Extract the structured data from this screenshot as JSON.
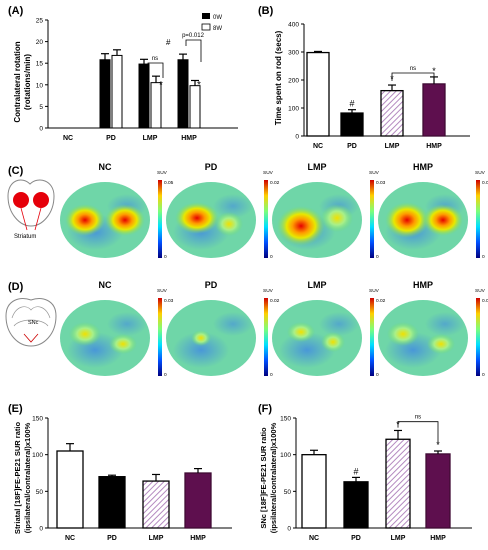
{
  "chart_data": [
    {
      "panel": "(A)",
      "type": "bar",
      "ylabel": "Contralateral rotation\n(rotations/min)",
      "ylim": [
        0,
        25
      ],
      "yticks": [
        0,
        5,
        10,
        15,
        20,
        25
      ],
      "categories": [
        "NC",
        "PD",
        "LMP",
        "HMP"
      ],
      "legend": "top-right",
      "series": [
        {
          "name": "0W",
          "color": "#000000",
          "values": [
            0,
            15.8,
            14.8,
            15.8
          ],
          "errors": [
            0,
            1.4,
            1.1,
            1.3
          ]
        },
        {
          "name": "8W",
          "color": "#ffffff",
          "values": [
            0,
            16.8,
            10.5,
            9.8
          ],
          "errors": [
            0,
            1.3,
            1.5,
            1.2
          ]
        }
      ],
      "annotations": {
        "pd_8w": "#",
        "lmp_8w": "*",
        "hmp_8w": "*",
        "lmp_bracket": "ns",
        "hmp_bracket": "p=0.012"
      }
    },
    {
      "panel": "(B)",
      "type": "bar",
      "ylabel": "Time spent on rod (secs)",
      "ylim": [
        0,
        400
      ],
      "yticks": [
        0,
        100,
        200,
        300,
        400
      ],
      "categories": [
        "NC",
        "PD",
        "LMP",
        "HMP"
      ],
      "values": [
        298,
        82,
        162,
        186
      ],
      "errors": [
        4,
        12,
        20,
        25
      ],
      "annotations": [
        "",
        "#",
        "*",
        "*"
      ],
      "bracket": "ns"
    },
    {
      "panel": "(E)",
      "type": "bar",
      "ylabel": "Striatal [18F]FE-PE21 SUR ratio\n(ipsilateral/contralateral)x100%",
      "ylim": [
        0,
        150
      ],
      "yticks": [
        0,
        50,
        100,
        150
      ],
      "categories": [
        "NC",
        "PD",
        "LMP",
        "HMP"
      ],
      "values": [
        105,
        70,
        64,
        75
      ],
      "errors": [
        10,
        2,
        9,
        6
      ],
      "annotations": [
        "",
        "",
        "",
        ""
      ]
    },
    {
      "panel": "(F)",
      "type": "bar",
      "ylabel": "SNc [18F]FE-PE21 SUR ratio\n(ipsilateral/contralateral)x100%",
      "ylim": [
        0,
        150
      ],
      "yticks": [
        0,
        50,
        100,
        150
      ],
      "categories": [
        "NC",
        "PD",
        "LMP",
        "HMP"
      ],
      "values": [
        100,
        63,
        121,
        101
      ],
      "errors": [
        6,
        6,
        12,
        4
      ],
      "annotations": [
        "",
        "#",
        "*",
        "*"
      ],
      "bracket": "ns"
    }
  ],
  "pet_panels": [
    {
      "panel": "(C)",
      "region_label": "Striatum",
      "groups": [
        {
          "label": "NC",
          "scale_unit": "SUV",
          "scale_max": "0.05",
          "scale_min": "0"
        },
        {
          "label": "PD",
          "scale_unit": "SUV",
          "scale_max": "0.02",
          "scale_min": "0"
        },
        {
          "label": "LMP",
          "scale_unit": "SUV",
          "scale_max": "0.03",
          "scale_min": "0"
        },
        {
          "label": "HMP",
          "scale_unit": "SUV",
          "scale_max": "0.05",
          "scale_min": "0"
        }
      ]
    },
    {
      "panel": "(D)",
      "region_label": "SNc",
      "groups": [
        {
          "label": "NC",
          "scale_unit": "SUV",
          "scale_max": "0.03",
          "scale_min": "0"
        },
        {
          "label": "PD",
          "scale_unit": "SUV",
          "scale_max": "0.02",
          "scale_min": "0"
        },
        {
          "label": "LMP",
          "scale_unit": "SUV",
          "scale_max": "0.02",
          "scale_min": "0"
        },
        {
          "label": "HMP",
          "scale_unit": "SUV",
          "scale_max": "0.03",
          "scale_min": "0"
        }
      ]
    }
  ],
  "colors": {
    "nc": "#ffffff",
    "pd": "#000000",
    "lmp_hatch": "#c8a8cf",
    "hmp": "#5e0f4e"
  }
}
